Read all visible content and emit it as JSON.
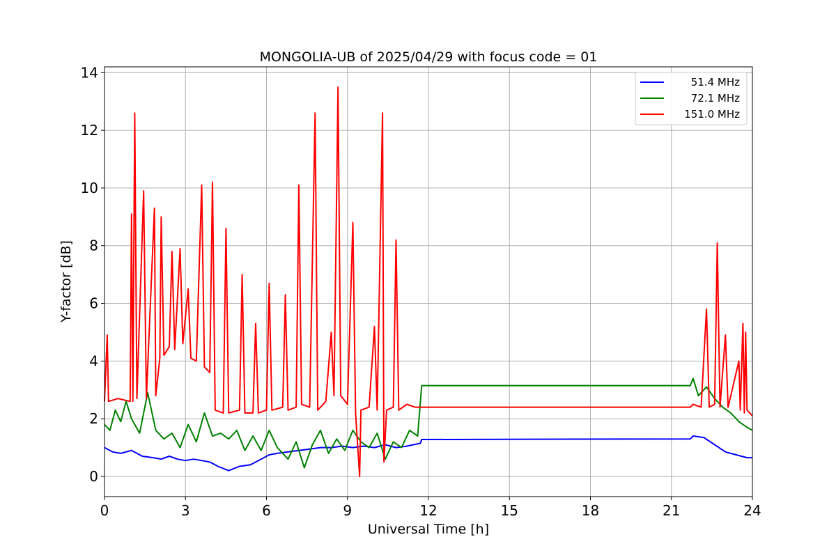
{
  "chart_data": {
    "type": "line",
    "title": "MONGOLIA-UB of 2025/04/29 with focus code = 01",
    "xlabel": "Universal Time [h]",
    "ylabel": "Y-factor [dB]",
    "xlim": [
      0,
      24
    ],
    "ylim": [
      -0.7,
      14.2
    ],
    "xticks": [
      0,
      3,
      6,
      9,
      12,
      15,
      18,
      21,
      24
    ],
    "yticks": [
      0,
      2,
      4,
      6,
      8,
      10,
      12,
      14
    ],
    "grid": true,
    "legend_position": "top-right",
    "series": [
      {
        "name": "51.4 MHz",
        "color": "#0000ff",
        "points": [
          [
            0.0,
            1.0
          ],
          [
            0.3,
            0.85
          ],
          [
            0.6,
            0.8
          ],
          [
            1.0,
            0.9
          ],
          [
            1.4,
            0.7
          ],
          [
            1.8,
            0.65
          ],
          [
            2.1,
            0.6
          ],
          [
            2.4,
            0.7
          ],
          [
            2.7,
            0.6
          ],
          [
            3.0,
            0.55
          ],
          [
            3.3,
            0.6
          ],
          [
            3.6,
            0.55
          ],
          [
            3.9,
            0.5
          ],
          [
            4.2,
            0.35
          ],
          [
            4.6,
            0.2
          ],
          [
            5.0,
            0.35
          ],
          [
            5.4,
            0.4
          ],
          [
            5.8,
            0.6
          ],
          [
            6.1,
            0.75
          ],
          [
            6.4,
            0.8
          ],
          [
            6.8,
            0.85
          ],
          [
            7.2,
            0.9
          ],
          [
            7.6,
            0.95
          ],
          [
            8.0,
            1.0
          ],
          [
            8.4,
            1.0
          ],
          [
            8.8,
            1.05
          ],
          [
            9.2,
            1.0
          ],
          [
            9.6,
            1.05
          ],
          [
            10.0,
            1.0
          ],
          [
            10.4,
            1.1
          ],
          [
            10.8,
            1.0
          ],
          [
            11.2,
            1.05
          ],
          [
            11.7,
            1.15
          ],
          [
            11.75,
            1.28
          ],
          [
            21.7,
            1.3
          ],
          [
            21.8,
            1.4
          ],
          [
            22.2,
            1.35
          ],
          [
            22.6,
            1.1
          ],
          [
            23.0,
            0.85
          ],
          [
            23.4,
            0.75
          ],
          [
            23.8,
            0.65
          ],
          [
            24.0,
            0.65
          ]
        ]
      },
      {
        "name": "72.1 MHz",
        "color": "#008000",
        "points": [
          [
            0.0,
            1.8
          ],
          [
            0.2,
            1.6
          ],
          [
            0.4,
            2.3
          ],
          [
            0.6,
            1.9
          ],
          [
            0.8,
            2.6
          ],
          [
            1.0,
            2.0
          ],
          [
            1.3,
            1.5
          ],
          [
            1.6,
            2.9
          ],
          [
            1.9,
            1.6
          ],
          [
            2.2,
            1.3
          ],
          [
            2.5,
            1.5
          ],
          [
            2.8,
            1.0
          ],
          [
            3.1,
            1.8
          ],
          [
            3.4,
            1.2
          ],
          [
            3.7,
            2.2
          ],
          [
            4.0,
            1.4
          ],
          [
            4.3,
            1.5
          ],
          [
            4.6,
            1.3
          ],
          [
            4.9,
            1.6
          ],
          [
            5.2,
            0.9
          ],
          [
            5.5,
            1.4
          ],
          [
            5.8,
            0.9
          ],
          [
            6.1,
            1.6
          ],
          [
            6.4,
            1.0
          ],
          [
            6.8,
            0.6
          ],
          [
            7.1,
            1.2
          ],
          [
            7.4,
            0.3
          ],
          [
            7.7,
            1.1
          ],
          [
            8.0,
            1.6
          ],
          [
            8.3,
            0.8
          ],
          [
            8.6,
            1.3
          ],
          [
            8.9,
            0.9
          ],
          [
            9.2,
            1.6
          ],
          [
            9.5,
            1.2
          ],
          [
            9.8,
            1.0
          ],
          [
            10.1,
            1.5
          ],
          [
            10.4,
            0.6
          ],
          [
            10.7,
            1.2
          ],
          [
            11.0,
            1.0
          ],
          [
            11.3,
            1.6
          ],
          [
            11.6,
            1.4
          ],
          [
            11.75,
            3.15
          ],
          [
            21.7,
            3.15
          ],
          [
            21.8,
            3.4
          ],
          [
            22.0,
            2.8
          ],
          [
            22.3,
            3.1
          ],
          [
            22.6,
            2.7
          ],
          [
            22.9,
            2.4
          ],
          [
            23.2,
            2.2
          ],
          [
            23.5,
            1.9
          ],
          [
            23.8,
            1.7
          ],
          [
            24.0,
            1.6
          ]
        ]
      },
      {
        "name": "151.0 MHz",
        "color": "#ff0000",
        "points": [
          [
            0.0,
            2.6
          ],
          [
            0.1,
            4.9
          ],
          [
            0.15,
            2.6
          ],
          [
            0.5,
            2.7
          ],
          [
            0.95,
            2.6
          ],
          [
            1.0,
            9.1
          ],
          [
            1.05,
            2.6
          ],
          [
            1.12,
            12.6
          ],
          [
            1.2,
            2.7
          ],
          [
            1.45,
            9.9
          ],
          [
            1.55,
            2.7
          ],
          [
            1.85,
            9.3
          ],
          [
            1.9,
            2.8
          ],
          [
            2.05,
            4.1
          ],
          [
            2.1,
            9.0
          ],
          [
            2.2,
            4.2
          ],
          [
            2.4,
            4.5
          ],
          [
            2.5,
            7.8
          ],
          [
            2.6,
            4.4
          ],
          [
            2.8,
            7.9
          ],
          [
            2.9,
            4.6
          ],
          [
            3.1,
            6.5
          ],
          [
            3.2,
            4.1
          ],
          [
            3.4,
            4.0
          ],
          [
            3.6,
            10.1
          ],
          [
            3.7,
            3.8
          ],
          [
            3.9,
            3.6
          ],
          [
            4.0,
            10.2
          ],
          [
            4.1,
            2.3
          ],
          [
            4.4,
            2.2
          ],
          [
            4.5,
            8.6
          ],
          [
            4.6,
            2.2
          ],
          [
            5.0,
            2.3
          ],
          [
            5.1,
            7.0
          ],
          [
            5.2,
            2.2
          ],
          [
            5.5,
            2.2
          ],
          [
            5.6,
            5.3
          ],
          [
            5.7,
            2.2
          ],
          [
            6.0,
            2.3
          ],
          [
            6.1,
            6.7
          ],
          [
            6.2,
            2.3
          ],
          [
            6.6,
            2.4
          ],
          [
            6.7,
            6.3
          ],
          [
            6.8,
            2.3
          ],
          [
            7.1,
            2.4
          ],
          [
            7.2,
            10.1
          ],
          [
            7.3,
            2.5
          ],
          [
            7.6,
            2.4
          ],
          [
            7.8,
            12.6
          ],
          [
            7.9,
            2.3
          ],
          [
            8.2,
            2.6
          ],
          [
            8.4,
            5.0
          ],
          [
            8.5,
            2.8
          ],
          [
            8.65,
            13.5
          ],
          [
            8.75,
            2.8
          ],
          [
            9.0,
            2.5
          ],
          [
            9.2,
            8.8
          ],
          [
            9.3,
            2.2
          ],
          [
            9.45,
            0.0
          ],
          [
            9.5,
            2.3
          ],
          [
            9.8,
            2.4
          ],
          [
            10.0,
            5.2
          ],
          [
            10.1,
            2.3
          ],
          [
            10.3,
            12.6
          ],
          [
            10.35,
            0.5
          ],
          [
            10.45,
            2.3
          ],
          [
            10.7,
            2.4
          ],
          [
            10.8,
            8.2
          ],
          [
            10.9,
            2.3
          ],
          [
            11.2,
            2.5
          ],
          [
            11.5,
            2.4
          ],
          [
            11.75,
            2.4
          ],
          [
            21.7,
            2.4
          ],
          [
            21.8,
            2.5
          ],
          [
            22.1,
            2.4
          ],
          [
            22.3,
            5.8
          ],
          [
            22.4,
            2.4
          ],
          [
            22.6,
            2.5
          ],
          [
            22.7,
            8.1
          ],
          [
            22.8,
            2.4
          ],
          [
            23.0,
            4.9
          ],
          [
            23.1,
            2.4
          ],
          [
            23.5,
            4.0
          ],
          [
            23.55,
            2.3
          ],
          [
            23.65,
            5.3
          ],
          [
            23.7,
            2.2
          ],
          [
            23.75,
            5.0
          ],
          [
            23.8,
            2.3
          ],
          [
            24.0,
            2.1
          ]
        ]
      }
    ]
  }
}
